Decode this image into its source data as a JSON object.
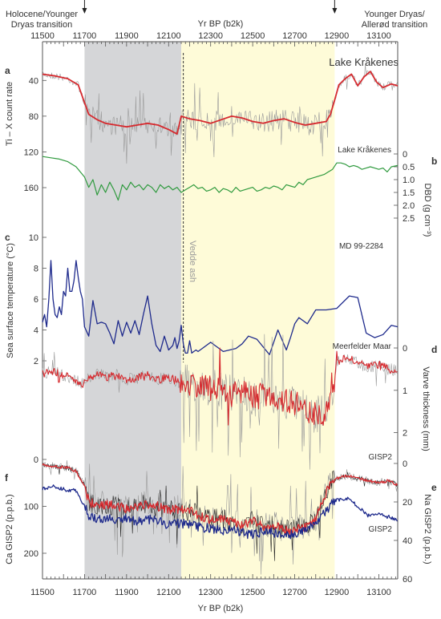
{
  "figure": {
    "top_axis_label": "Yr BP (b2k)",
    "bottom_axis_label": "Yr BP (b2k)",
    "x_ticks": [
      11500,
      11700,
      11900,
      12100,
      12300,
      12500,
      12700,
      12900,
      13100
    ],
    "annotations": {
      "left_transition": [
        "Holocene/Younger",
        "Dryas transition"
      ],
      "right_transition": [
        "Younger Dryas/",
        "Allerød transition"
      ],
      "tephra": "Vedde ash"
    },
    "shading": {
      "grey_start": 11700,
      "grey_end": 12160,
      "yellow_start": 12160,
      "yellow_end": 12890,
      "vedde_ash_year": 12170,
      "grey_color": "#d5d6d8",
      "yellow_color": "#fefbd8"
    },
    "colors": {
      "red": "#d62a2f",
      "green": "#2f9a3e",
      "navy": "#1e2a8c",
      "grey": "#9a9a9a"
    }
  },
  "chart_data": [
    {
      "type": "line",
      "panel_letter": "a",
      "site": "Lake Kråkenes",
      "ylabel": "Ti – X count rate",
      "yticks": [
        40,
        80,
        120,
        160
      ],
      "ylim": [
        20,
        160
      ],
      "y_inverted": true,
      "series": [
        {
          "role": "smoothed (red)",
          "x": [
            11500,
            11560,
            11620,
            11670,
            11700,
            11720,
            11760,
            11800,
            11850,
            11900,
            11950,
            12000,
            12050,
            12100,
            12140,
            12160,
            12200,
            12250,
            12300,
            12350,
            12400,
            12450,
            12500,
            12550,
            12600,
            12650,
            12700,
            12750,
            12800,
            12850,
            12870,
            12890,
            12910,
            12940,
            12970,
            13000,
            13030,
            13060,
            13090,
            13120,
            13160,
            13190
          ],
          "y": [
            33,
            35,
            38,
            45,
            65,
            78,
            84,
            88,
            90,
            92,
            90,
            88,
            90,
            95,
            100,
            80,
            83,
            85,
            88,
            84,
            80,
            82,
            86,
            88,
            85,
            83,
            87,
            90,
            88,
            86,
            78,
            62,
            45,
            38,
            33,
            46,
            36,
            30,
            42,
            48,
            44,
            46
          ]
        }
      ]
    },
    {
      "type": "line",
      "panel_letter": "b",
      "site": "Lake Kråkenes",
      "ylabel": "DBD (g cm⁻³)",
      "yticks": [
        0,
        0.5,
        1.0,
        1.5,
        2.0,
        2.5
      ],
      "ylim": [
        0,
        2.5
      ],
      "y_inverted": true,
      "series": [
        {
          "role": "dry bulk density (green)",
          "x": [
            11500,
            11540,
            11580,
            11620,
            11660,
            11700,
            11720,
            11740,
            11760,
            11780,
            11800,
            11820,
            11840,
            11860,
            11880,
            11900,
            11920,
            11940,
            11960,
            11980,
            12000,
            12020,
            12040,
            12060,
            12080,
            12100,
            12120,
            12140,
            12160,
            12180,
            12200,
            12220,
            12240,
            12260,
            12280,
            12300,
            12320,
            12340,
            12360,
            12380,
            12400,
            12420,
            12440,
            12460,
            12480,
            12500,
            12520,
            12540,
            12560,
            12580,
            12600,
            12620,
            12640,
            12660,
            12680,
            12700,
            12720,
            12740,
            12760,
            12780,
            12800,
            12820,
            12840,
            12860,
            12880,
            12900,
            12920,
            12940,
            12960,
            12980,
            13000,
            13020,
            13040,
            13060,
            13080,
            13100,
            13120,
            13140,
            13160,
            13190
          ],
          "y": [
            0.1,
            0.15,
            0.2,
            0.3,
            0.5,
            0.9,
            1.3,
            1.0,
            1.6,
            1.2,
            1.5,
            1.1,
            1.4,
            1.8,
            1.2,
            1.4,
            1.1,
            1.3,
            1.2,
            1.4,
            1.2,
            1.3,
            1.5,
            1.2,
            1.35,
            1.25,
            1.4,
            1.3,
            1.5,
            1.4,
            1.3,
            1.2,
            1.35,
            1.3,
            1.45,
            1.4,
            1.3,
            1.5,
            1.35,
            1.4,
            1.5,
            1.3,
            1.45,
            1.4,
            1.35,
            1.3,
            1.45,
            1.4,
            1.3,
            1.35,
            1.25,
            1.3,
            1.4,
            1.2,
            1.25,
            1.3,
            1.1,
            1.2,
            1.0,
            0.95,
            0.9,
            0.85,
            0.8,
            0.7,
            0.6,
            0.35,
            0.35,
            0.4,
            0.5,
            0.45,
            0.5,
            0.6,
            0.55,
            0.5,
            0.55,
            0.6,
            0.55,
            0.7,
            0.5,
            0.45
          ]
        }
      ]
    },
    {
      "type": "line",
      "panel_letter": "c",
      "site": "MD 99-2284",
      "ylabel": "Sea surface temperature (°C)",
      "yticks": [
        2,
        4,
        6,
        8,
        10
      ],
      "ylim": [
        2,
        10
      ],
      "series": [
        {
          "role": "SST (navy)",
          "x": [
            11500,
            11510,
            11520,
            11530,
            11540,
            11550,
            11560,
            11570,
            11580,
            11590,
            11600,
            11610,
            11620,
            11630,
            11640,
            11650,
            11660,
            11670,
            11680,
            11690,
            11700,
            11720,
            11740,
            11760,
            11780,
            11800,
            11820,
            11840,
            11860,
            11880,
            11900,
            11920,
            11940,
            11960,
            11980,
            12000,
            12020,
            12040,
            12060,
            12080,
            12100,
            12120,
            12130,
            12140,
            12150,
            12160,
            12170,
            12180,
            12190,
            12200,
            12210,
            12220,
            12230,
            12240,
            12260,
            12300,
            12360,
            12420,
            12450,
            12480,
            12520,
            12580,
            12620,
            12660,
            12680,
            12700,
            12720,
            12760,
            12800,
            12850,
            12900,
            12960,
            13000,
            13040,
            13080,
            13120,
            13160,
            13190
          ],
          "y": [
            4.5,
            5,
            4.2,
            6,
            8.5,
            6,
            5,
            4.8,
            5.5,
            5,
            6.5,
            6.2,
            8,
            6.5,
            6.5,
            7.2,
            8.5,
            7.4,
            6.5,
            6,
            4.2,
            3.6,
            5.9,
            4.4,
            4.5,
            4.4,
            3.8,
            3.1,
            4.6,
            3.6,
            4.5,
            3.8,
            4.6,
            3.7,
            5,
            6.2,
            4.4,
            3,
            2.6,
            3.6,
            2.7,
            3,
            3.5,
            2.8,
            3.3,
            4.3,
            3.1,
            2.5,
            2.5,
            3.3,
            2.5,
            2.6,
            2.7,
            2.6,
            2.8,
            3.2,
            2.6,
            2.8,
            3.1,
            3.6,
            3.4,
            2.4,
            4,
            2.7,
            3.5,
            4.4,
            4.8,
            4.4,
            5.3,
            5.3,
            5.4,
            6.2,
            6.1,
            3.8,
            3.5,
            3.7,
            4.3,
            4.2
          ]
        }
      ]
    },
    {
      "type": "line",
      "panel_letter": "d",
      "site": "Meerfelder Maar",
      "ylabel": "Varve thickness (mm)",
      "yticks": [
        0,
        1,
        2
      ],
      "ylim": [
        0,
        2.5
      ],
      "y_inverted": true,
      "series": [
        {
          "role": "smoothed (red)",
          "x": [
            11500,
            11550,
            11600,
            11650,
            11700,
            11720,
            11760,
            11800,
            11850,
            11900,
            11950,
            12000,
            12050,
            12100,
            12150,
            12200,
            12250,
            12300,
            12350,
            12400,
            12450,
            12500,
            12550,
            12600,
            12650,
            12700,
            12750,
            12800,
            12850,
            12870,
            12890,
            12900,
            12950,
            13000,
            13050,
            13100,
            13150,
            13190
          ],
          "y": [
            0.6,
            0.55,
            0.65,
            0.75,
            0.85,
            0.7,
            0.6,
            0.7,
            0.65,
            0.75,
            0.7,
            0.65,
            0.75,
            0.7,
            0.8,
            0.85,
            0.9,
            0.95,
            1.0,
            1.1,
            1.0,
            1.2,
            1.1,
            1.15,
            1.25,
            1.3,
            1.4,
            1.6,
            1.5,
            1.2,
            0.8,
            0.3,
            0.25,
            0.35,
            0.45,
            0.4,
            0.5,
            0.55
          ]
        }
      ]
    },
    {
      "type": "line",
      "panel_letters": [
        "e",
        "f"
      ],
      "site": "GISP2",
      "ylabel": "Ca GISP2 (p.p.b.)",
      "yticks": [
        0,
        100,
        200
      ],
      "ylim": [
        -10,
        275
      ],
      "y_inverted": true,
      "ylabel_right": "Na GISP2 (p.p.b.)",
      "yticks_right": [
        0,
        20,
        40,
        60
      ],
      "ylim_right": [
        0,
        60
      ],
      "y_right_inverted": true,
      "series": [
        {
          "role": "Ca smoothed (red)",
          "x": [
            11500,
            11560,
            11620,
            11660,
            11700,
            11720,
            11760,
            11800,
            11850,
            11900,
            11950,
            12000,
            12050,
            12100,
            12150,
            12200,
            12250,
            12300,
            12350,
            12400,
            12450,
            12500,
            12550,
            12600,
            12650,
            12700,
            12750,
            12800,
            12820,
            12850,
            12880,
            12900,
            12950,
            13000,
            13050,
            13100,
            13150,
            13190
          ],
          "y": [
            12,
            15,
            18,
            25,
            55,
            90,
            100,
            95,
            100,
            105,
            100,
            95,
            100,
            110,
            105,
            110,
            120,
            130,
            125,
            135,
            140,
            130,
            145,
            140,
            150,
            150,
            145,
            130,
            100,
            70,
            45,
            40,
            35,
            40,
            45,
            50,
            45,
            55
          ]
        },
        {
          "role": "Na smoothed (navy)",
          "axis": "right",
          "x": [
            11500,
            11560,
            11620,
            11660,
            11700,
            11720,
            11760,
            11800,
            11850,
            11900,
            11950,
            12000,
            12050,
            12100,
            12150,
            12200,
            12250,
            12300,
            12350,
            12400,
            12450,
            12500,
            12550,
            12600,
            12650,
            12700,
            12750,
            12800,
            12850,
            12880,
            12900,
            12950,
            13000,
            13050,
            13100,
            13150,
            13190
          ],
          "y": [
            13,
            12,
            14,
            14,
            22,
            27,
            29,
            28,
            30,
            28,
            30,
            29,
            30,
            32,
            31,
            32,
            33,
            34,
            35,
            34,
            36,
            37,
            35,
            36,
            37,
            37,
            35,
            31,
            25,
            20,
            19,
            18,
            22,
            27,
            26,
            28,
            30
          ]
        }
      ]
    }
  ]
}
